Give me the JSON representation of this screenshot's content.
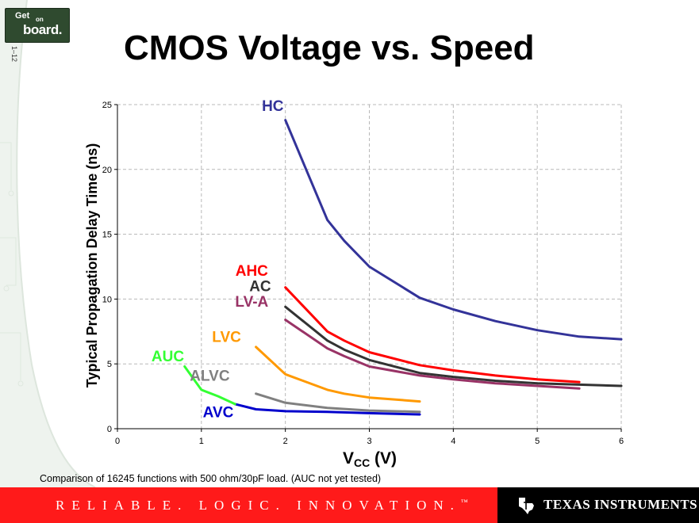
{
  "slide": {
    "logo_line1": "Get",
    "logo_line2": "on",
    "logo_line3": "board.",
    "slide_number": "1–12",
    "title": "CMOS Voltage vs. Speed",
    "footnote": "Comparison of 16245 functions with 500 ohm/30pF load.  (AUC not yet tested)",
    "tagline": "RELIABLE. LOGIC. INNOVATION.",
    "tagline_mark": "™",
    "company": "TEXAS INSTRUMENTS",
    "colors": {
      "footer_red": "#ff1a1a",
      "footer_black": "#000000"
    },
    "icons": [
      "texas-state-logo-icon"
    ]
  },
  "chart_data": {
    "type": "line",
    "title": "",
    "xlabel": "VCC (V)",
    "xlabel_main": "V",
    "xlabel_sub": "CC",
    "xlabel_unit": " (V)",
    "ylabel": "Typical Propagation Delay Time (ns)",
    "xlim": [
      0,
      6
    ],
    "ylim": [
      0,
      25
    ],
    "xticks": [
      0,
      1,
      2,
      3,
      4,
      5,
      6
    ],
    "yticks": [
      0,
      5,
      10,
      15,
      20,
      25
    ],
    "grid": true,
    "series": [
      {
        "name": "HC",
        "color": "#333399",
        "label_at": [
          1.85,
          24.5
        ],
        "points": [
          [
            2,
            23.8
          ],
          [
            2.5,
            16.1
          ],
          [
            2.7,
            14.5
          ],
          [
            3,
            12.5
          ],
          [
            3.6,
            10.1
          ],
          [
            4,
            9.2
          ],
          [
            4.5,
            8.3
          ],
          [
            5,
            7.6
          ],
          [
            5.5,
            7.1
          ],
          [
            6,
            6.9
          ]
        ]
      },
      {
        "name": "AHC",
        "color": "#ff0000",
        "label_at": [
          1.6,
          11.8
        ],
        "points": [
          [
            2,
            10.9
          ],
          [
            2.5,
            7.5
          ],
          [
            2.7,
            6.8
          ],
          [
            3,
            5.9
          ],
          [
            3.6,
            4.9
          ],
          [
            4,
            4.5
          ],
          [
            4.5,
            4.1
          ],
          [
            5,
            3.8
          ],
          [
            5.5,
            3.6
          ]
        ]
      },
      {
        "name": "AC",
        "color": "#333333",
        "label_at": [
          1.7,
          10.6
        ],
        "points": [
          [
            2,
            9.4
          ],
          [
            2.5,
            6.8
          ],
          [
            2.7,
            6.1
          ],
          [
            3,
            5.3
          ],
          [
            3.6,
            4.3
          ],
          [
            4,
            4.0
          ],
          [
            4.5,
            3.7
          ],
          [
            5,
            3.5
          ],
          [
            5.5,
            3.4
          ],
          [
            6,
            3.3
          ]
        ]
      },
      {
        "name": "LV-A",
        "color": "#993366",
        "label_at": [
          1.6,
          9.4
        ],
        "points": [
          [
            2,
            8.4
          ],
          [
            2.5,
            6.2
          ],
          [
            2.7,
            5.6
          ],
          [
            3,
            4.8
          ],
          [
            3.6,
            4.1
          ],
          [
            4,
            3.8
          ],
          [
            4.5,
            3.5
          ],
          [
            5,
            3.3
          ],
          [
            5.5,
            3.1
          ]
        ]
      },
      {
        "name": "LVC",
        "color": "#ff9900",
        "label_at": [
          1.3,
          6.7
        ],
        "points": [
          [
            1.65,
            6.3
          ],
          [
            2,
            4.2
          ],
          [
            2.5,
            3.0
          ],
          [
            2.7,
            2.7
          ],
          [
            3,
            2.4
          ],
          [
            3.6,
            2.1
          ]
        ]
      },
      {
        "name": "ALVC",
        "color": "#808080",
        "label_at": [
          1.1,
          3.7
        ],
        "points": [
          [
            1.65,
            2.7
          ],
          [
            2,
            2.0
          ],
          [
            2.5,
            1.6
          ],
          [
            3,
            1.4
          ],
          [
            3.6,
            1.3
          ]
        ]
      },
      {
        "name": "AVC",
        "color": "#0000cc",
        "label_at": [
          1.2,
          0.9
        ],
        "points": [
          [
            1.4,
            1.9
          ],
          [
            1.65,
            1.5
          ],
          [
            2,
            1.35
          ],
          [
            2.5,
            1.3
          ],
          [
            3,
            1.2
          ],
          [
            3.6,
            1.1
          ]
        ]
      },
      {
        "name": "AUC",
        "color": "#33ff33",
        "label_at": [
          0.6,
          5.2
        ],
        "points": [
          [
            0.8,
            4.8
          ],
          [
            1,
            3.0
          ],
          [
            1.2,
            2.5
          ],
          [
            1.4,
            1.9
          ]
        ]
      }
    ]
  }
}
